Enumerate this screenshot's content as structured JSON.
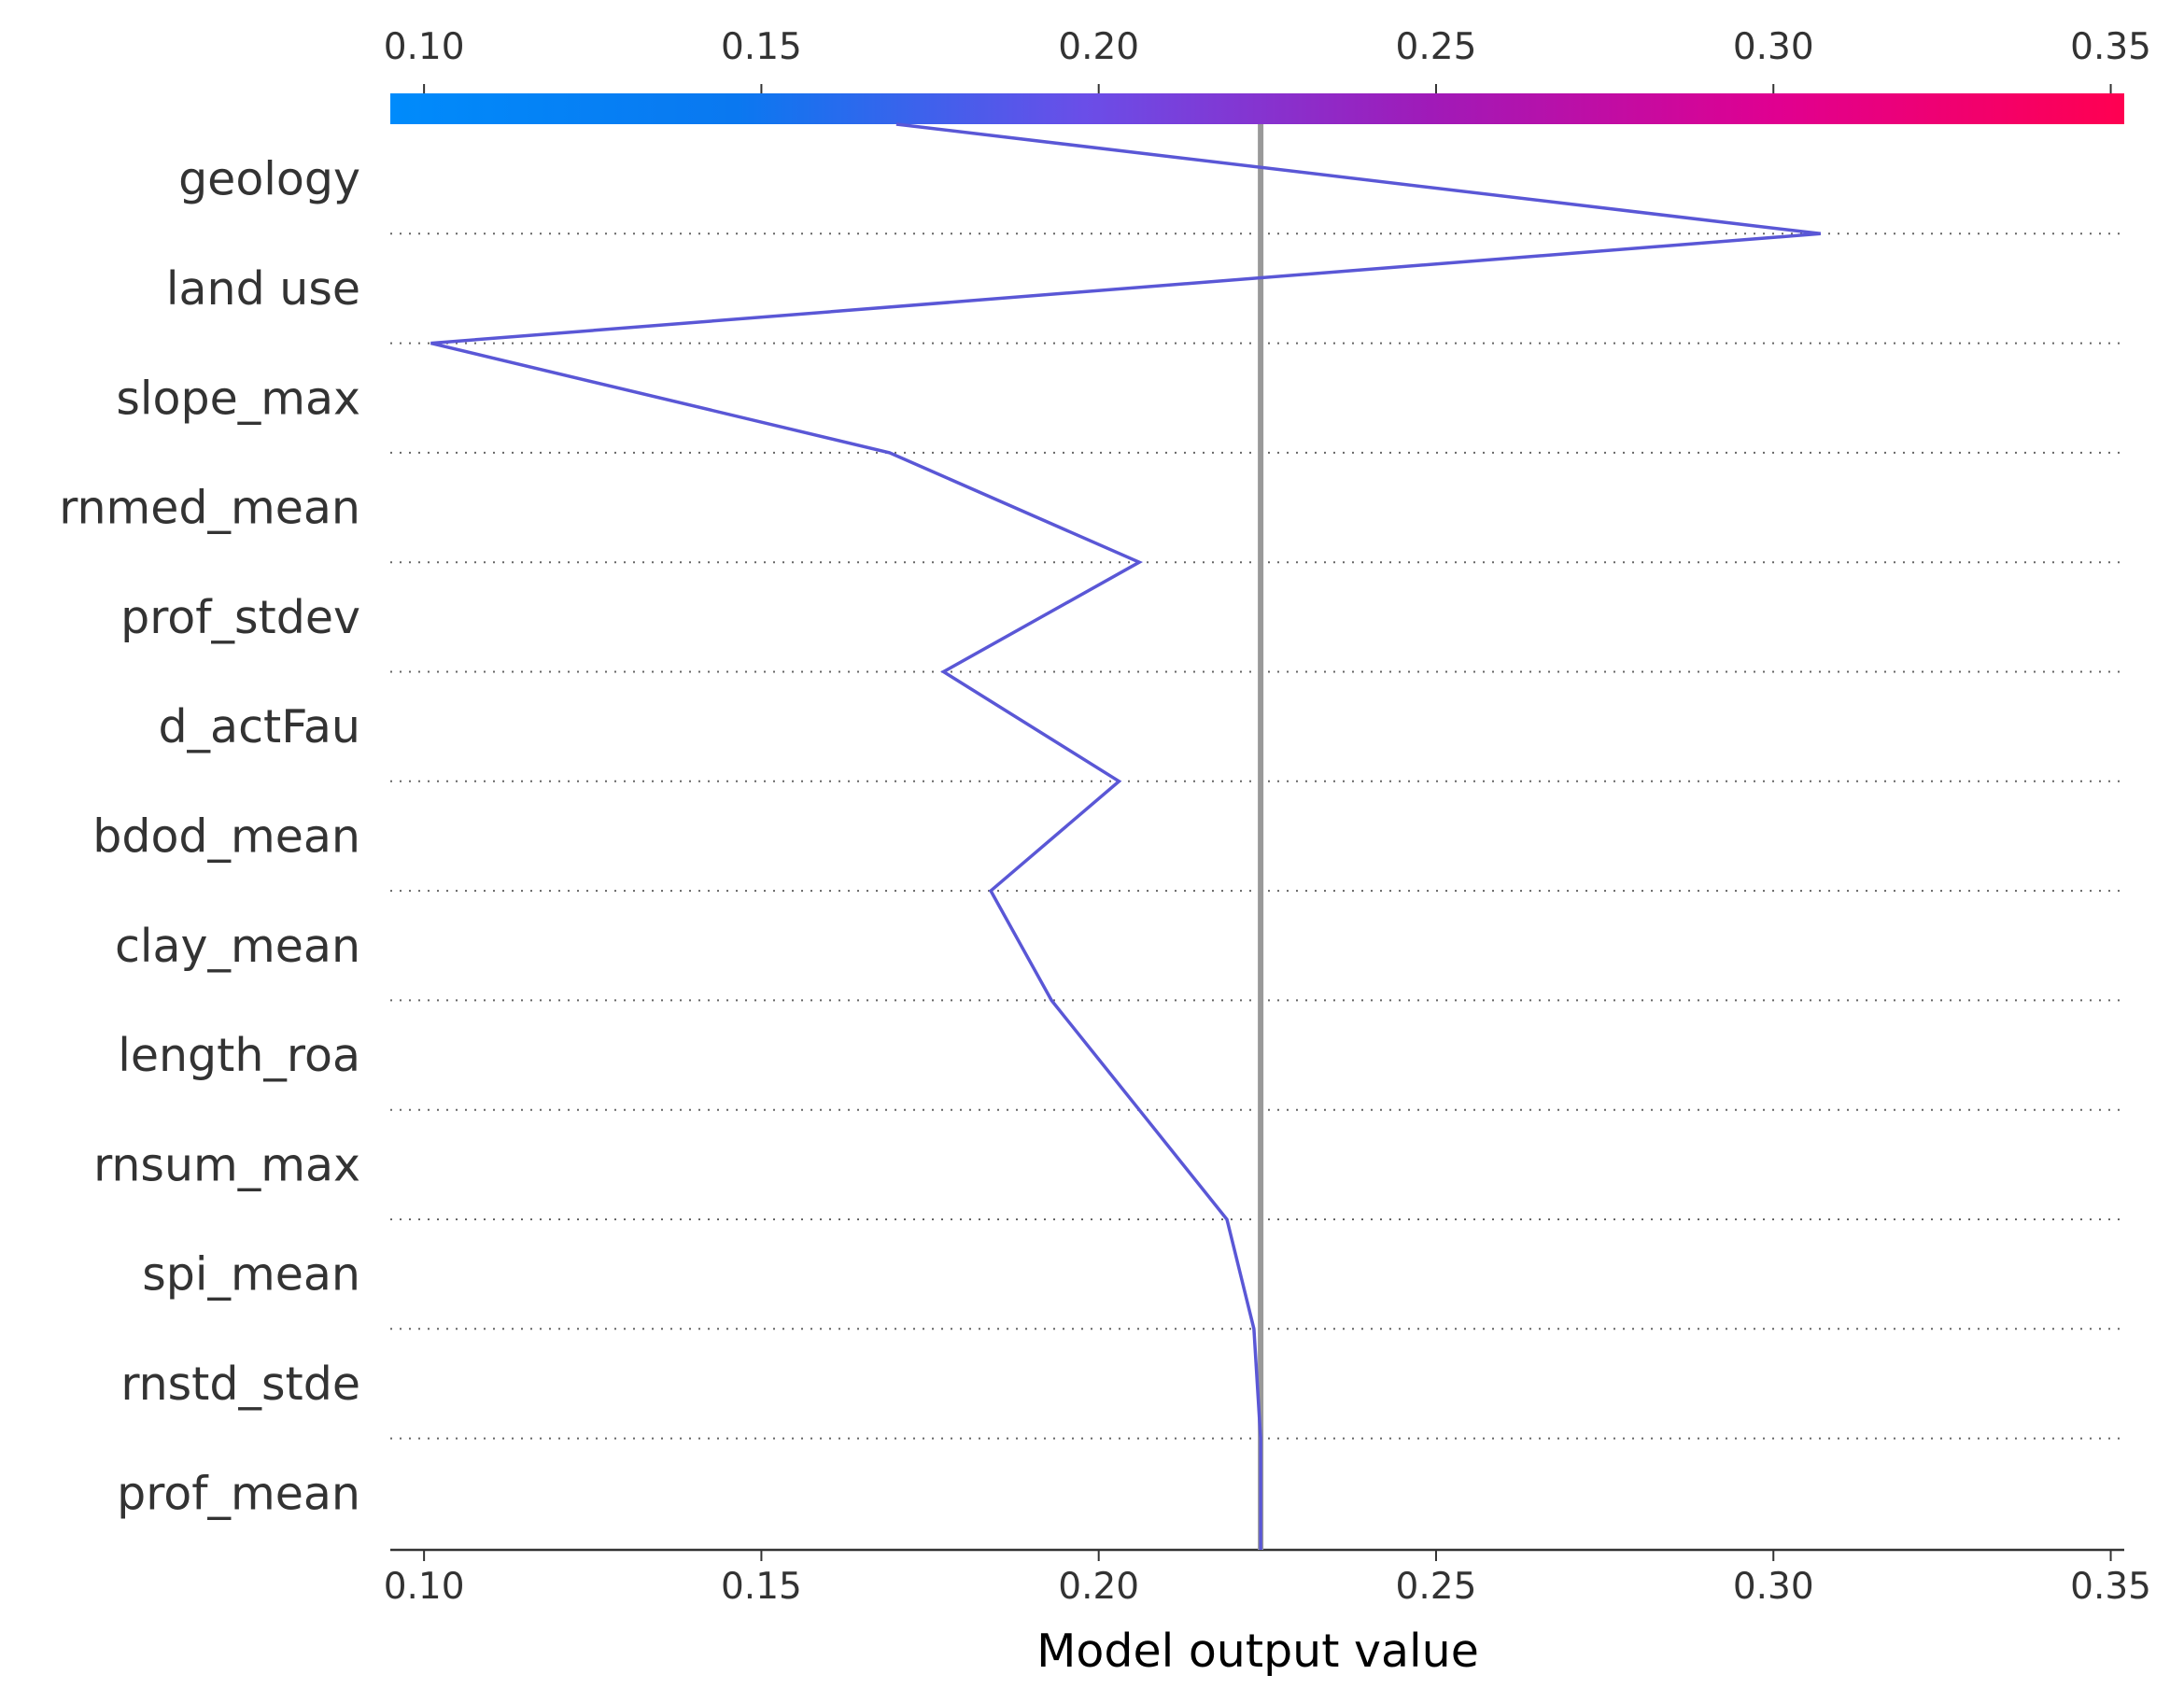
{
  "chart_data": {
    "type": "line",
    "chart_kind": "shap decision plot",
    "xlabel": "Model output value",
    "xlim": [
      0.095,
      0.352
    ],
    "x_ticks": [
      "0.10",
      "0.15",
      "0.20",
      "0.25",
      "0.30",
      "0.35"
    ],
    "x_tick_values": [
      0.1,
      0.15,
      0.2,
      0.25,
      0.3,
      0.35
    ],
    "features": [
      "geology",
      "land use",
      "slope_max",
      "rnmed_mean",
      "prof_stdev",
      "d_actFau",
      "bdod_mean",
      "clay_mean",
      "length_roa",
      "rnsum_max",
      "spi_mean",
      "rnstd_stde",
      "prof_mean"
    ],
    "base_value": 0.224,
    "path_x": [
      0.17,
      0.307,
      0.101,
      0.169,
      0.206,
      0.177,
      0.203,
      0.184,
      0.193,
      0.206,
      0.219,
      0.223,
      0.224
    ],
    "colorbar": {
      "range": [
        0.1,
        0.35
      ],
      "colors": [
        "#008bfb",
        "#6a4ee8",
        "#c300a6",
        "#ff0051"
      ],
      "position": "top"
    },
    "line_color": "#5a57d6",
    "base_line_color": "#999999",
    "grid": "dotted horizontal"
  }
}
